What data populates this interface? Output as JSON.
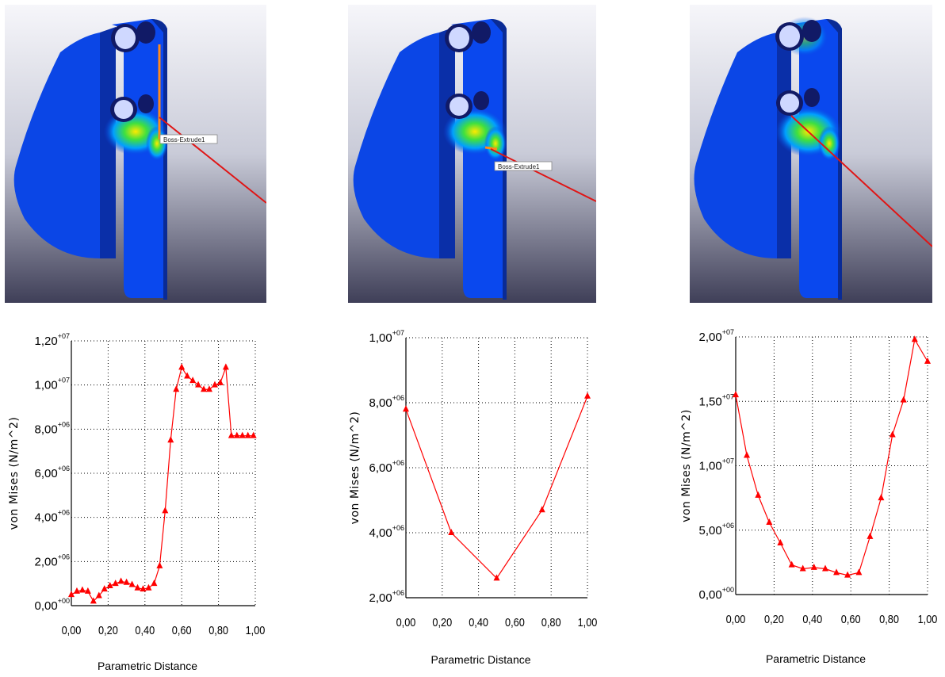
{
  "panels": [
    {
      "model": {
        "callout": "Boss-Extrude1",
        "callout_visible": true,
        "variant": 0
      },
      "chart_data": {
        "type": "line",
        "xlabel": "Parametric Distance",
        "ylabel": "von Mises (N/m^2)",
        "xlim": [
          0,
          1
        ],
        "ylim": [
          0,
          12000000
        ],
        "grid": true,
        "x_ticks": [
          "0,00",
          "0,20",
          "0,40",
          "0,60",
          "0,80",
          "1,00"
        ],
        "y_ticks": [
          {
            "base": "0,00",
            "exp": "+00"
          },
          {
            "base": "2,00",
            "exp": "+06"
          },
          {
            "base": "4,00",
            "exp": "+06"
          },
          {
            "base": "6,00",
            "exp": "+06"
          },
          {
            "base": "8,00",
            "exp": "+06"
          },
          {
            "base": "1,00",
            "exp": "+07"
          },
          {
            "base": "1,20",
            "exp": "+07"
          }
        ],
        "color": "#ff0000",
        "series": [
          {
            "x": [
              0,
              0.03,
              0.06,
              0.09,
              0.12,
              0.15,
              0.18,
              0.21,
              0.24,
              0.27,
              0.3,
              0.33,
              0.36,
              0.39,
              0.42,
              0.45,
              0.48,
              0.51,
              0.54,
              0.57,
              0.6,
              0.63,
              0.66,
              0.69,
              0.72,
              0.75,
              0.78,
              0.81,
              0.84,
              0.87,
              0.9,
              0.93,
              0.96,
              0.99
            ],
            "y": [
              500000,
              650000,
              700000,
              650000,
              200000,
              450000,
              750000,
              900000,
              1000000,
              1100000,
              1050000,
              950000,
              800000,
              750000,
              800000,
              1000000,
              1800000,
              4300000,
              7500000,
              9800000,
              10800000,
              10400000,
              10200000,
              10000000,
              9800000,
              9800000,
              10000000,
              10100000,
              10800000,
              7700000,
              7700000,
              7700000,
              7700000,
              7700000
            ]
          }
        ]
      }
    },
    {
      "model": {
        "callout": "Boss-Extrude1",
        "callout_visible": true,
        "variant": 1
      },
      "chart_data": {
        "type": "line",
        "xlabel": "Parametric Distance",
        "ylabel": "von Mises (N/m^2)",
        "xlim": [
          0,
          1
        ],
        "ylim": [
          2000000,
          10000000
        ],
        "grid": true,
        "x_ticks": [
          "0,00",
          "0,20",
          "0,40",
          "0,60",
          "0,80",
          "1,00"
        ],
        "y_ticks": [
          {
            "base": "2,00",
            "exp": "+06"
          },
          {
            "base": "4,00",
            "exp": "+06"
          },
          {
            "base": "6,00",
            "exp": "+06"
          },
          {
            "base": "8,00",
            "exp": "+06"
          },
          {
            "base": "1,00",
            "exp": "+07"
          }
        ],
        "color": "#ff0000",
        "series": [
          {
            "x": [
              0,
              0.25,
              0.5,
              0.75,
              1.0
            ],
            "y": [
              7800000,
              4000000,
              2600000,
              4700000,
              8200000
            ]
          }
        ]
      }
    },
    {
      "model": {
        "callout": "",
        "callout_visible": false,
        "variant": 2
      },
      "chart_data": {
        "type": "line",
        "xlabel": "Parametric Distance",
        "ylabel": "von Mises (N/m^2)",
        "xlim": [
          0,
          1
        ],
        "ylim": [
          0,
          20000000
        ],
        "grid": true,
        "x_ticks": [
          "0,00",
          "0,20",
          "0,40",
          "0,60",
          "0,80",
          "1,00"
        ],
        "y_ticks": [
          {
            "base": "0,00",
            "exp": "+00"
          },
          {
            "base": "5,00",
            "exp": "+06"
          },
          {
            "base": "1,00",
            "exp": "+07"
          },
          {
            "base": "1,50",
            "exp": "+07"
          },
          {
            "base": "2,00",
            "exp": "+07"
          }
        ],
        "color": "#ff0000",
        "series": [
          {
            "x": [
              0,
              0.058,
              0.117,
              0.175,
              0.233,
              0.292,
              0.35,
              0.408,
              0.467,
              0.525,
              0.583,
              0.642,
              0.7,
              0.758,
              0.817,
              0.875,
              0.933,
              1.0
            ],
            "y": [
              15500000,
              10800000,
              7700000,
              5600000,
              4000000,
              2300000,
              2000000,
              2100000,
              2000000,
              1700000,
              1500000,
              1700000,
              4500000,
              7500000,
              12400000,
              15100000,
              19800000,
              18100000
            ]
          }
        ]
      }
    }
  ]
}
